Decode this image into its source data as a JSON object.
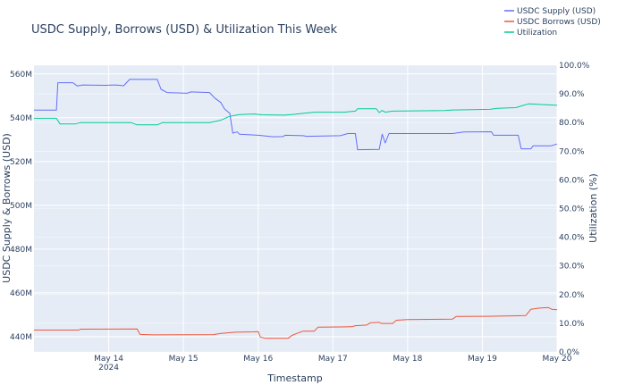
{
  "chart_data": {
    "type": "line",
    "title": "USDC Supply, Borrows (USD) & Utilization This Week",
    "xlabel": "Timestamp",
    "ylabel": "USDC Supply & Borrows (USD)",
    "y2label": "Utilization (%)",
    "legend_position": "top-right",
    "grid": true,
    "colors": {
      "supply": "#636efa",
      "borrows": "#ef553b",
      "utilization": "#00cc96",
      "plot_bg": "#e5ecf6",
      "grid": "#ffffff",
      "text": "#2a3f5f"
    },
    "x_ticks": [
      {
        "day": 14,
        "label": "May 14",
        "sublabel": "2024"
      },
      {
        "day": 15,
        "label": "May 15",
        "sublabel": ""
      },
      {
        "day": 16,
        "label": "May 16",
        "sublabel": ""
      },
      {
        "day": 17,
        "label": "May 17",
        "sublabel": ""
      },
      {
        "day": 18,
        "label": "May 18",
        "sublabel": ""
      },
      {
        "day": 19,
        "label": "May 19",
        "sublabel": ""
      },
      {
        "day": 20,
        "label": "May 20",
        "sublabel": ""
      }
    ],
    "xlim_days": [
      13,
      20
    ],
    "y_left": {
      "range": [
        433,
        564
      ],
      "ticks": [
        {
          "value": 440,
          "label": "440M"
        },
        {
          "value": 460,
          "label": "460M"
        },
        {
          "value": 480,
          "label": "480M"
        },
        {
          "value": 500,
          "label": "500M"
        },
        {
          "value": 520,
          "label": "520M"
        },
        {
          "value": 540,
          "label": "540M"
        },
        {
          "value": 560,
          "label": "560M"
        }
      ]
    },
    "y_right": {
      "range": [
        0,
        100
      ],
      "ticks": [
        {
          "value": 0,
          "label": "0.0%"
        },
        {
          "value": 10,
          "label": "10.0%"
        },
        {
          "value": 20,
          "label": "20.0%"
        },
        {
          "value": 30,
          "label": "30.0%"
        },
        {
          "value": 40,
          "label": "40.0%"
        },
        {
          "value": 50,
          "label": "50.0%"
        },
        {
          "value": 60,
          "label": "60.0%"
        },
        {
          "value": 70,
          "label": "70.0%"
        },
        {
          "value": 80,
          "label": "80.0%"
        },
        {
          "value": 90,
          "label": "90.0%"
        },
        {
          "value": 100,
          "label": "100.0%"
        }
      ]
    },
    "series": [
      {
        "name": "USDC Supply (USD)",
        "key": "supply",
        "axis": "left",
        "unit": "M USD",
        "points": [
          [
            13.0,
            543.5
          ],
          [
            13.3,
            543.5
          ],
          [
            13.32,
            556.0
          ],
          [
            13.52,
            556.0
          ],
          [
            13.58,
            554.5
          ],
          [
            13.65,
            555.0
          ],
          [
            13.95,
            554.8
          ],
          [
            14.1,
            555.0
          ],
          [
            14.2,
            554.6
          ],
          [
            14.28,
            557.5
          ],
          [
            14.65,
            557.5
          ],
          [
            14.7,
            553.0
          ],
          [
            14.78,
            551.5
          ],
          [
            15.05,
            551.2
          ],
          [
            15.1,
            551.8
          ],
          [
            15.35,
            551.5
          ],
          [
            15.42,
            549.0
          ],
          [
            15.5,
            547.0
          ],
          [
            15.55,
            544.0
          ],
          [
            15.62,
            542.0
          ],
          [
            15.66,
            533.0
          ],
          [
            15.72,
            533.5
          ],
          [
            15.75,
            532.5
          ],
          [
            16.0,
            532.0
          ],
          [
            16.2,
            531.3
          ],
          [
            16.33,
            531.4
          ],
          [
            16.36,
            532.0
          ],
          [
            16.6,
            531.8
          ],
          [
            16.65,
            531.5
          ],
          [
            17.1,
            531.8
          ],
          [
            17.2,
            532.8
          ],
          [
            17.3,
            532.8
          ],
          [
            17.33,
            525.4
          ],
          [
            17.62,
            525.5
          ],
          [
            17.66,
            532.5
          ],
          [
            17.7,
            528.5
          ],
          [
            17.75,
            532.8
          ],
          [
            18.6,
            532.8
          ],
          [
            18.75,
            533.5
          ],
          [
            19.12,
            533.6
          ],
          [
            19.15,
            532.0
          ],
          [
            19.48,
            532.0
          ],
          [
            19.52,
            525.8
          ],
          [
            19.65,
            525.8
          ],
          [
            19.68,
            527.2
          ],
          [
            19.92,
            527.2
          ],
          [
            20.0,
            528.0
          ]
        ]
      },
      {
        "name": "USDC Borrows (USD)",
        "key": "borrows",
        "axis": "left",
        "unit": "M USD",
        "points": [
          [
            13.0,
            443.0
          ],
          [
            13.6,
            443.0
          ],
          [
            13.62,
            443.4
          ],
          [
            14.38,
            443.5
          ],
          [
            14.42,
            441.0
          ],
          [
            14.6,
            440.8
          ],
          [
            15.4,
            440.9
          ],
          [
            15.5,
            441.5
          ],
          [
            15.7,
            442.0
          ],
          [
            15.95,
            442.2
          ],
          [
            16.0,
            442.3
          ],
          [
            16.03,
            439.8
          ],
          [
            16.1,
            439.2
          ],
          [
            16.4,
            439.2
          ],
          [
            16.45,
            440.5
          ],
          [
            16.52,
            441.5
          ],
          [
            16.6,
            442.5
          ],
          [
            16.75,
            442.5
          ],
          [
            16.8,
            444.3
          ],
          [
            17.25,
            444.5
          ],
          [
            17.3,
            445.0
          ],
          [
            17.45,
            445.3
          ],
          [
            17.5,
            446.3
          ],
          [
            17.62,
            446.5
          ],
          [
            17.65,
            446.0
          ],
          [
            17.8,
            446.0
          ],
          [
            17.85,
            447.5
          ],
          [
            18.0,
            447.8
          ],
          [
            18.6,
            448.0
          ],
          [
            18.65,
            449.2
          ],
          [
            19.05,
            449.3
          ],
          [
            19.4,
            449.5
          ],
          [
            19.58,
            449.6
          ],
          [
            19.65,
            452.5
          ],
          [
            19.75,
            453.0
          ],
          [
            19.88,
            453.3
          ],
          [
            19.93,
            452.5
          ],
          [
            20.0,
            452.3
          ]
        ]
      },
      {
        "name": "Utilization",
        "key": "utilization",
        "axis": "right",
        "unit": "%",
        "points": [
          [
            13.0,
            81.5
          ],
          [
            13.3,
            81.5
          ],
          [
            13.35,
            79.5
          ],
          [
            13.55,
            79.5
          ],
          [
            13.62,
            80.0
          ],
          [
            14.3,
            80.0
          ],
          [
            14.38,
            79.2
          ],
          [
            14.65,
            79.2
          ],
          [
            14.72,
            80.0
          ],
          [
            15.35,
            80.0
          ],
          [
            15.5,
            80.8
          ],
          [
            15.6,
            82.0
          ],
          [
            15.68,
            82.5
          ],
          [
            15.75,
            82.8
          ],
          [
            15.95,
            83.0
          ],
          [
            16.05,
            82.7
          ],
          [
            16.35,
            82.6
          ],
          [
            16.45,
            82.8
          ],
          [
            16.6,
            83.2
          ],
          [
            16.75,
            83.6
          ],
          [
            17.15,
            83.6
          ],
          [
            17.3,
            84.0
          ],
          [
            17.33,
            84.8
          ],
          [
            17.58,
            84.8
          ],
          [
            17.62,
            83.5
          ],
          [
            17.66,
            84.2
          ],
          [
            17.7,
            83.6
          ],
          [
            17.8,
            84.0
          ],
          [
            18.5,
            84.2
          ],
          [
            18.6,
            84.4
          ],
          [
            19.1,
            84.6
          ],
          [
            19.2,
            85.0
          ],
          [
            19.45,
            85.2
          ],
          [
            19.55,
            86.0
          ],
          [
            19.62,
            86.5
          ],
          [
            19.85,
            86.2
          ],
          [
            20.0,
            86.0
          ]
        ]
      }
    ]
  }
}
